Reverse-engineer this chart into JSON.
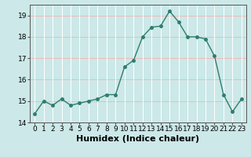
{
  "x": [
    0,
    1,
    2,
    3,
    4,
    5,
    6,
    7,
    8,
    9,
    10,
    11,
    12,
    13,
    14,
    15,
    16,
    17,
    18,
    19,
    20,
    21,
    22,
    23
  ],
  "y": [
    14.4,
    15.0,
    14.8,
    15.1,
    14.8,
    14.9,
    15.0,
    15.1,
    15.3,
    15.3,
    16.6,
    16.9,
    18.0,
    18.45,
    18.5,
    19.2,
    18.7,
    18.0,
    18.0,
    17.9,
    17.1,
    15.3,
    14.5,
    15.1
  ],
  "xlabel": "Humidex (Indice chaleur)",
  "ylim": [
    14,
    19.5
  ],
  "xlim": [
    -0.5,
    23.5
  ],
  "yticks": [
    14,
    15,
    16,
    17,
    18,
    19
  ],
  "xticks": [
    0,
    1,
    2,
    3,
    4,
    5,
    6,
    7,
    8,
    9,
    10,
    11,
    12,
    13,
    14,
    15,
    16,
    17,
    18,
    19,
    20,
    21,
    22,
    23
  ],
  "line_color": "#2e7d6e",
  "marker": "o",
  "marker_size": 2.5,
  "line_width": 1.0,
  "bg_color": "#cce8e8",
  "grid_v_color": "#ffffff",
  "grid_h_color": "#f0b8b8",
  "xlabel_fontsize": 8,
  "tick_fontsize": 6.5
}
